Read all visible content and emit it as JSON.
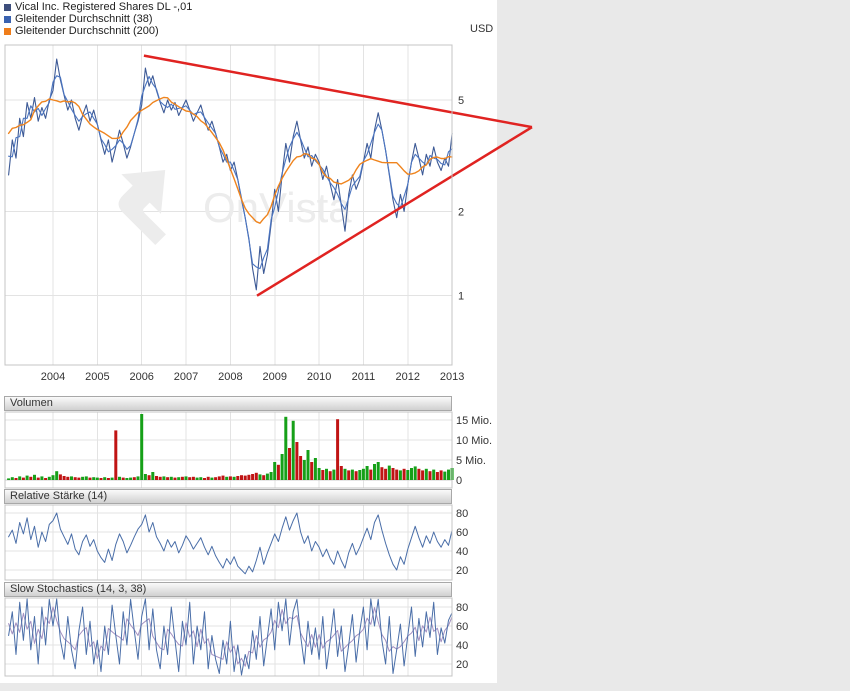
{
  "page": {
    "background": "#e9e9e9",
    "panel_background": "#ffffff"
  },
  "unit_label": "USD",
  "watermark": {
    "text": "OnVista",
    "color": "#ececec"
  },
  "legend": {
    "items": [
      {
        "label": "Vical Inc. Registered Shares DL -,01",
        "color": "#3d4e7c"
      },
      {
        "label": "Gleitender Durchschnitt (38)",
        "color": "#3a62b0"
      },
      {
        "label": "Gleitender Durchschnitt (200)",
        "color": "#ef7d1a"
      }
    ]
  },
  "panels": {
    "volume": {
      "title": "Volumen"
    },
    "rsi": {
      "title": "Relative Stärke (14)"
    },
    "stochastics": {
      "title": "Slow Stochastics (14, 3, 38)"
    }
  },
  "chart_data": [
    {
      "id": "price",
      "type": "line",
      "title": "Vical Inc. Registered Shares DL -,01",
      "unit": "USD",
      "y_scale": "log",
      "ylim": [
        0.56,
        7.9
      ],
      "xlim": [
        2003.0,
        2013.0
      ],
      "y_ticks": [
        5,
        2,
        1
      ],
      "x_ticks": [
        2004,
        2005,
        2006,
        2007,
        2008,
        2009,
        2010,
        2011,
        2012,
        2013
      ],
      "x_start": 2003.0,
      "x_step": 0.0833333,
      "series": [
        {
          "name": "Vical Inc. Registered Shares DL -,01",
          "color": "#3d5a96",
          "values": [
            2.7,
            3.6,
            3.1,
            4.3,
            3.7,
            4.9,
            4.3,
            5.1,
            4.2,
            4.7,
            4.3,
            5.0,
            5.4,
            7.0,
            5.9,
            5.2,
            4.6,
            5.0,
            4.3,
            3.9,
            4.4,
            4.8,
            4.2,
            4.6,
            4.1,
            3.6,
            3.2,
            3.6,
            3.0,
            3.4,
            3.9,
            3.5,
            3.1,
            3.4,
            3.8,
            4.2,
            4.8,
            6.5,
            5.6,
            6.1,
            5.4,
            4.9,
            4.5,
            5.0,
            4.6,
            4.9,
            4.4,
            4.7,
            5.0,
            4.6,
            4.2,
            4.5,
            4.8,
            4.3,
            3.9,
            4.2,
            3.8,
            3.4,
            3.0,
            3.2,
            2.8,
            3.0,
            2.6,
            2.2,
            1.9,
            1.6,
            1.25,
            1.05,
            1.5,
            1.2,
            1.4,
            1.8,
            2.4,
            2.0,
            2.7,
            3.5,
            3.0,
            3.7,
            4.2,
            3.6,
            3.1,
            3.4,
            2.9,
            3.2,
            3.0,
            2.6,
            2.9,
            2.5,
            2.2,
            2.6,
            2.1,
            1.7,
            2.3,
            2.7,
            2.4,
            2.6,
            3.0,
            3.5,
            3.1,
            3.9,
            4.5,
            3.9,
            3.3,
            2.7,
            2.2,
            1.9,
            2.3,
            2.0,
            2.5,
            3.0,
            3.5,
            3.1,
            2.7,
            3.2,
            2.9,
            3.4,
            3.0,
            2.8,
            3.1,
            2.9,
            3.8
          ]
        },
        {
          "name": "Gleitender Durchschnitt (38)",
          "color": "#4a74c0",
          "derived_from": "price",
          "smooth_halfwin": 1
        },
        {
          "name": "Gleitender Durchschnitt (200)",
          "color": "#ef841e",
          "derived_from": "price",
          "smooth_halfwin": 6
        }
      ],
      "annotations": {
        "trendlines": [
          {
            "x1": 2006.05,
            "y1": 7.2,
            "x2": 2014.8,
            "y2": 4.0,
            "color": "#e02321",
            "width": 2.5
          },
          {
            "x1": 2008.6,
            "y1": 1.0,
            "x2": 2014.8,
            "y2": 4.0,
            "color": "#e02321",
            "width": 2.5
          }
        ]
      }
    },
    {
      "id": "volume",
      "type": "bar",
      "title": "Volumen",
      "unit": "Mio.",
      "ylim": [
        0,
        16.5
      ],
      "y_ticks": [
        {
          "value": 15,
          "label": "15 Mio."
        },
        {
          "value": 10,
          "label": "10 Mio."
        },
        {
          "value": 5,
          "label": "5 Mio."
        },
        {
          "value": 0,
          "label": "0"
        }
      ],
      "x_start": 2003.0,
      "x_step": 0.0833333,
      "up_color": "#16a018",
      "down_color": "#c01414",
      "values": [
        0.4,
        0.7,
        0.5,
        0.9,
        0.6,
        1.1,
        0.8,
        1.3,
        0.6,
        0.9,
        0.5,
        0.8,
        1.2,
        2.2,
        1.4,
        1.0,
        0.8,
        0.9,
        0.7,
        0.6,
        0.8,
        0.9,
        0.6,
        0.7,
        0.6,
        0.5,
        0.7,
        0.5,
        0.6,
        12.4,
        0.8,
        0.6,
        0.5,
        0.6,
        0.7,
        0.9,
        16.5,
        1.5,
        1.2,
        2.0,
        1.0,
        0.8,
        0.9,
        0.7,
        0.8,
        0.6,
        0.7,
        0.8,
        0.9,
        0.7,
        0.8,
        0.6,
        0.7,
        0.5,
        0.8,
        0.6,
        0.7,
        0.9,
        1.1,
        0.8,
        0.9,
        0.8,
        1.0,
        1.2,
        1.1,
        1.3,
        1.5,
        1.8,
        1.4,
        1.2,
        1.6,
        2.0,
        4.5,
        3.8,
        6.5,
        15.8,
        8.0,
        14.8,
        9.5,
        6.0,
        5.0,
        7.5,
        4.5,
        5.5,
        3.0,
        2.5,
        2.8,
        2.2,
        2.6,
        15.2,
        3.5,
        2.8,
        2.4,
        2.6,
        2.2,
        2.5,
        2.8,
        3.5,
        2.6,
        4.0,
        4.5,
        3.2,
        2.8,
        3.6,
        3.0,
        2.6,
        2.4,
        2.8,
        2.5,
        3.0,
        3.4,
        2.8,
        2.4,
        2.8,
        2.2,
        2.6,
        2.0,
        2.4,
        2.1,
        2.6,
        3.0
      ],
      "directions": [
        "ggrgrgrgrgrg",
        "ggrrrgrrggrg",
        "grgrgrgrggrg",
        "ggrgrrgrgrgr",
        "grrggrrgrrrg",
        "rgrrrrrrgrgg",
        "grggrgrrggrg",
        "grgrgrrgrgrg",
        "ggrggrrgrrgr",
        "gggrrgrgrrgg",
        "g"
      ]
    },
    {
      "id": "rsi",
      "type": "line",
      "title": "Relative Stärke (14)",
      "ylim": [
        0,
        100
      ],
      "y_ticks": [
        80,
        60,
        40,
        20
      ],
      "x_start": 2003.0,
      "x_step": 0.0833333,
      "color": "#4a6ea8",
      "values": [
        55,
        62,
        48,
        70,
        58,
        75,
        52,
        66,
        44,
        60,
        50,
        68,
        72,
        80,
        63,
        55,
        47,
        58,
        42,
        36,
        50,
        57,
        45,
        52,
        40,
        33,
        28,
        42,
        30,
        47,
        58,
        50,
        38,
        46,
        55,
        63,
        68,
        78,
        60,
        70,
        55,
        48,
        40,
        52,
        44,
        50,
        38,
        46,
        56,
        50,
        42,
        48,
        54,
        44,
        36,
        45,
        35,
        28,
        22,
        32,
        26,
        34,
        24,
        20,
        16,
        24,
        18,
        30,
        44,
        26,
        38,
        48,
        58,
        50,
        64,
        76,
        62,
        72,
        80,
        60,
        48,
        56,
        40,
        50,
        44,
        34,
        42,
        32,
        26,
        40,
        30,
        22,
        38,
        48,
        36,
        44,
        54,
        64,
        52,
        70,
        78,
        62,
        48,
        36,
        26,
        20,
        34,
        26,
        42,
        54,
        66,
        54,
        44,
        56,
        48,
        60,
        50,
        44,
        52,
        46,
        62
      ]
    },
    {
      "id": "stochastics",
      "type": "line",
      "title": "Slow Stochastics (14, 3, 38)",
      "ylim": [
        0,
        100
      ],
      "y_ticks": [
        80,
        60,
        40,
        20
      ],
      "x_start": 2003.0,
      "x_step": 0.0833333,
      "series": [
        {
          "name": "%K",
          "color": "#4a6ea8",
          "values": [
            50,
            75,
            30,
            85,
            45,
            90,
            35,
            70,
            20,
            80,
            40,
            88,
            60,
            92,
            45,
            25,
            70,
            35,
            15,
            55,
            80,
            30,
            65,
            20,
            45,
            12,
            60,
            30,
            82,
            50,
            20,
            75,
            40,
            88,
            55,
            25,
            70,
            90,
            35,
            78,
            35,
            15,
            60,
            30,
            80,
            45,
            12,
            65,
            40,
            85,
            20,
            60,
            35,
            75,
            15,
            50,
            25,
            10,
            45,
            20,
            65,
            12,
            40,
            8,
            30,
            15,
            55,
            25,
            70,
            18,
            48,
            78,
            35,
            85,
            55,
            92,
            40,
            75,
            88,
            50,
            20,
            65,
            30,
            58,
            25,
            70,
            15,
            45,
            78,
            28,
            60,
            12,
            40,
            72,
            22,
            55,
            80,
            35,
            90,
            60,
            88,
            45,
            20,
            70,
            10,
            35,
            62,
            18,
            50,
            80,
            28,
            68,
            38,
            75,
            48,
            85,
            30,
            58,
            42,
            66,
            74
          ]
        },
        {
          "name": "%D (signal)",
          "color": "#a390c0",
          "derived_from": "%K",
          "smooth_halfwin": 1
        }
      ]
    }
  ]
}
